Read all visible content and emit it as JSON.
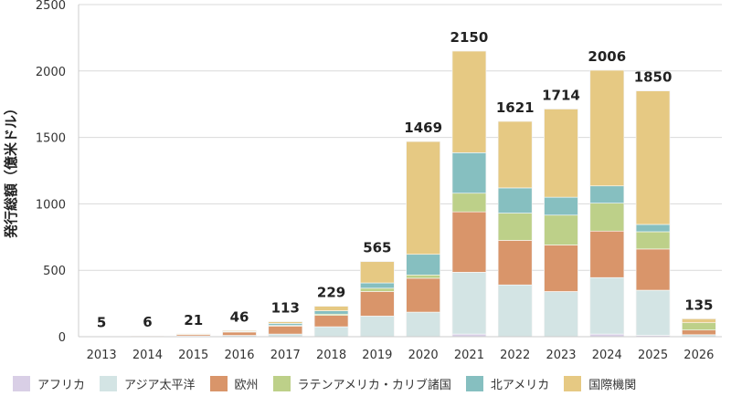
{
  "chart_data": {
    "type": "bar",
    "stacked": true,
    "ylabel": "発行総額（億米ドル）",
    "xlabel": "",
    "ylim": [
      0,
      2500
    ],
    "yticks": [
      0,
      500,
      1000,
      1500,
      2000,
      2500
    ],
    "grid": true,
    "legend_position": "bottom",
    "categories": [
      "2013",
      "2014",
      "2015",
      "2016",
      "2017",
      "2018",
      "2019",
      "2020",
      "2021",
      "2022",
      "2023",
      "2024",
      "2025",
      "2026"
    ],
    "totals": [
      5,
      6,
      21,
      46,
      113,
      229,
      565,
      1469,
      2150,
      1621,
      1714,
      2006,
      1850,
      135
    ],
    "series": [
      {
        "name": "アフリカ",
        "color": "#d9cfe6",
        "values": [
          0,
          0,
          0,
          0,
          0,
          0,
          0,
          0,
          20,
          0,
          0,
          20,
          10,
          0
        ]
      },
      {
        "name": "アジア太平洋",
        "color": "#d3e4e4",
        "values": [
          0,
          0,
          5,
          10,
          20,
          75,
          155,
          185,
          465,
          390,
          340,
          425,
          340,
          15
        ]
      },
      {
        "name": "欧州",
        "color": "#d9956a",
        "values": [
          0,
          0,
          10,
          25,
          60,
          85,
          185,
          255,
          455,
          335,
          350,
          350,
          310,
          35
        ]
      },
      {
        "name": "ラテンアメリカ・カリブ諸国",
        "color": "#bdd089",
        "values": [
          0,
          0,
          0,
          0,
          5,
          10,
          25,
          25,
          140,
          205,
          225,
          210,
          130,
          55
        ]
      },
      {
        "name": "北アメリカ",
        "color": "#86bfc0",
        "values": [
          0,
          0,
          0,
          5,
          15,
          25,
          40,
          155,
          305,
          190,
          135,
          130,
          55,
          0
        ]
      },
      {
        "name": "国際機関",
        "color": "#e6c983",
        "values": [
          5,
          6,
          6,
          6,
          13,
          34,
          160,
          849,
          765,
          501,
          664,
          871,
          1005,
          30
        ]
      }
    ]
  }
}
